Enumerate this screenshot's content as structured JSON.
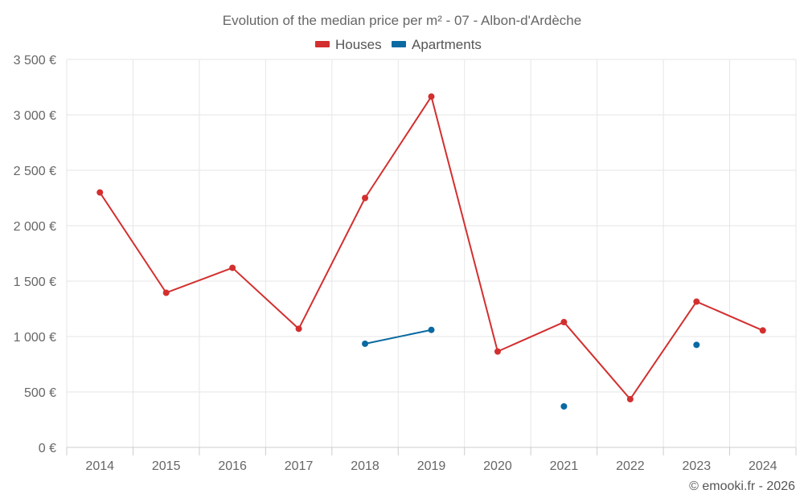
{
  "chart_data": {
    "type": "line",
    "title": "Evolution of the median price per m² - 07 - Albon-d'Ardèche",
    "categories": [
      "2014",
      "2015",
      "2016",
      "2017",
      "2018",
      "2019",
      "2020",
      "2021",
      "2022",
      "2023",
      "2024"
    ],
    "series": [
      {
        "name": "Houses",
        "color": "#d32f2f",
        "values": [
          2300,
          1395,
          1620,
          1070,
          2250,
          3165,
          865,
          1130,
          435,
          1315,
          1055
        ]
      },
      {
        "name": "Apartments",
        "color": "#0a6aa1",
        "values": [
          null,
          null,
          null,
          null,
          935,
          1060,
          null,
          370,
          null,
          925,
          null
        ]
      }
    ],
    "ylim": [
      0,
      3500
    ],
    "yticks": [
      0,
      500,
      1000,
      1500,
      2000,
      2500,
      3000,
      3500
    ],
    "ytick_labels": [
      "0 €",
      "500 €",
      "1 000 €",
      "1 500 €",
      "2 000 €",
      "2 500 €",
      "3 000 €",
      "3 500 €"
    ],
    "xlabel": "",
    "ylabel": "",
    "grid": true,
    "legend_position": "top-center"
  },
  "credit": "© emooki.fr - 2026"
}
